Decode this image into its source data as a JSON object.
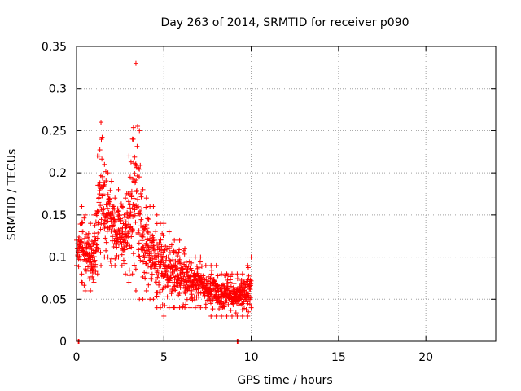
{
  "chart_data": {
    "type": "scatter",
    "title": "Day 263 of 2014, SRMTID for receiver p090",
    "xlabel": "GPS time / hours",
    "ylabel": "SRMTID / TECUs",
    "xlim": [
      0,
      24
    ],
    "ylim": [
      0,
      0.35
    ],
    "xticks": [
      "0",
      "5",
      "10",
      "15",
      "20"
    ],
    "yticks": [
      "0",
      "0.05",
      "0.1",
      "0.15",
      "0.2",
      "0.25",
      "0.3",
      "0.35"
    ],
    "grid": true,
    "marker": "+",
    "marker_color": "#ff0000",
    "envelope_hours": [
      0.0,
      0.3,
      0.5,
      0.8,
      1.0,
      1.2,
      1.4,
      1.6,
      1.8,
      2.0,
      2.2,
      2.4,
      2.6,
      2.8,
      3.0,
      3.2,
      3.4,
      3.6,
      3.8,
      4.0,
      4.2,
      4.4,
      4.6,
      4.8,
      5.0,
      5.3,
      5.6,
      5.9,
      6.2,
      6.5,
      6.8,
      7.1,
      7.4,
      7.7,
      8.0,
      8.3,
      8.6,
      8.9,
      9.2,
      9.5,
      9.8,
      10.0
    ],
    "envelope_low": [
      0.09,
      0.07,
      0.06,
      0.06,
      0.07,
      0.08,
      0.09,
      0.1,
      0.1,
      0.09,
      0.09,
      0.1,
      0.09,
      0.08,
      0.07,
      0.08,
      0.06,
      0.05,
      0.05,
      0.06,
      0.05,
      0.05,
      0.04,
      0.04,
      0.03,
      0.04,
      0.04,
      0.04,
      0.04,
      0.04,
      0.04,
      0.04,
      0.04,
      0.03,
      0.03,
      0.03,
      0.03,
      0.03,
      0.03,
      0.03,
      0.03,
      0.04
    ],
    "envelope_high": [
      0.12,
      0.16,
      0.15,
      0.14,
      0.15,
      0.22,
      0.26,
      0.21,
      0.2,
      0.19,
      0.17,
      0.18,
      0.16,
      0.17,
      0.22,
      0.24,
      0.33,
      0.25,
      0.18,
      0.17,
      0.16,
      0.16,
      0.15,
      0.14,
      0.14,
      0.13,
      0.12,
      0.12,
      0.11,
      0.1,
      0.1,
      0.1,
      0.09,
      0.09,
      0.09,
      0.08,
      0.08,
      0.08,
      0.08,
      0.08,
      0.09,
      0.1
    ],
    "baseline_markers_hours": [
      0.1,
      9.2
    ],
    "baseline_value": 0.0
  }
}
